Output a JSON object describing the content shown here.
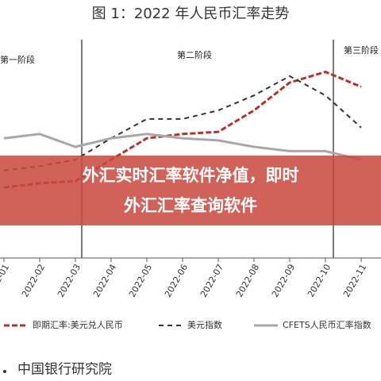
{
  "chart_data": {
    "type": "line",
    "title": "图 1：2022 年人民币汇率走势",
    "annotations": [
      "第一阶段",
      "第二阶段",
      "第三阶段"
    ],
    "banner": [
      "外汇实时汇率软件净值，即时",
      "外汇汇率查询软件"
    ],
    "source": "中国银行研究院",
    "categories": [
      "2022-01",
      "2022-02",
      "2022-03",
      "2022-04",
      "2022-05",
      "2022-06",
      "2022-07",
      "2022-08",
      "2022-09",
      "2022-10",
      "2022-11"
    ],
    "ylim": [
      0,
      100
    ],
    "series": [
      {
        "name": "即期汇率:美元兑人民币",
        "color": "#b8322a",
        "values": [
          31,
          33,
          34,
          44,
          54,
          56,
          57,
          67,
          80,
          85,
          78
        ]
      },
      {
        "name": "美元指数",
        "color": "#333333",
        "values": [
          39,
          41,
          44,
          54,
          63,
          63,
          67,
          74,
          83,
          74,
          59
        ]
      },
      {
        "name": "CFETS人民币汇率指数",
        "color": "#a8a8a8",
        "values": [
          54,
          56,
          50,
          54,
          56,
          54,
          53,
          50,
          48,
          48,
          44
        ]
      }
    ]
  }
}
